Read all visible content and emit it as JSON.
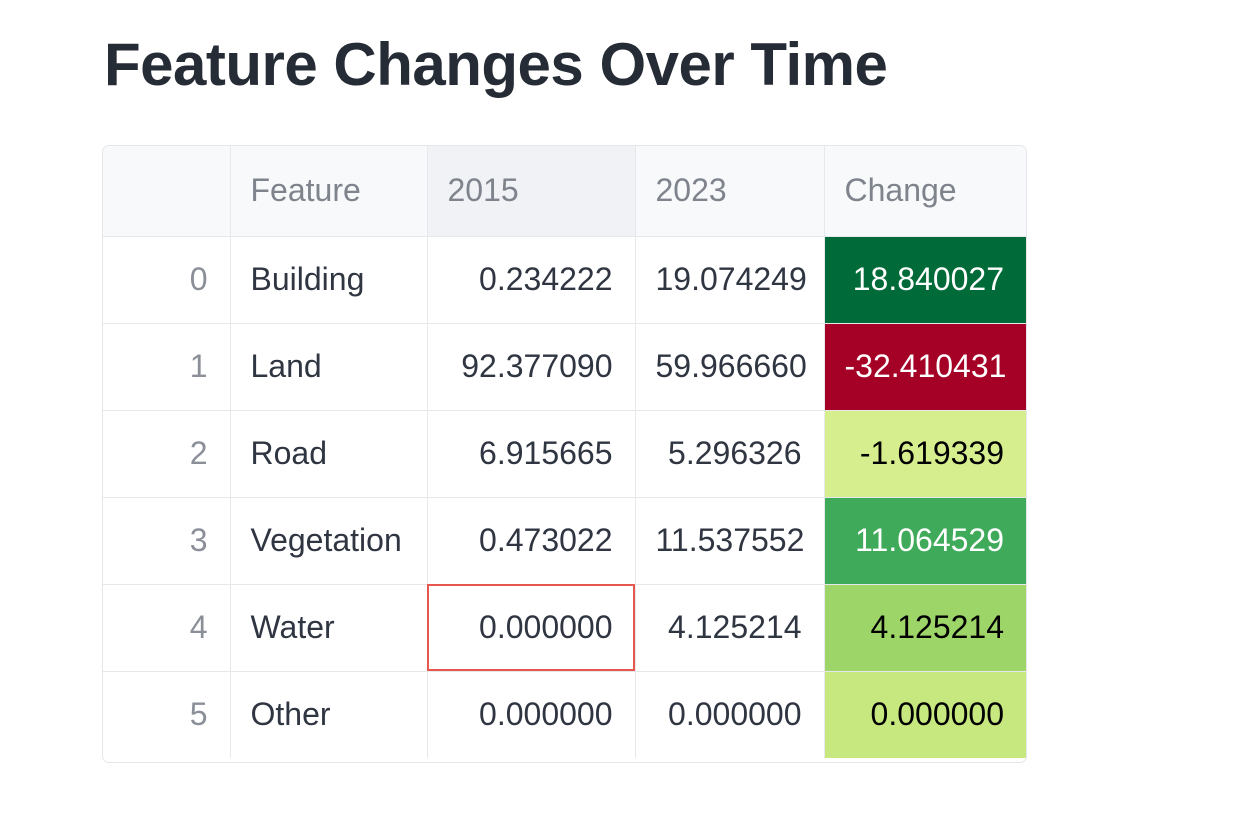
{
  "title": "Feature Changes Over Time",
  "table": {
    "columns": [
      "",
      "Feature",
      "2015",
      "2023",
      "Change"
    ],
    "rows": [
      {
        "index": "0",
        "feature": "Building",
        "y2015": "0.234222",
        "y2023": "19.074249",
        "change": "18.840027",
        "change_bg": "#006b38",
        "change_fg": "#ffffff"
      },
      {
        "index": "1",
        "feature": "Land",
        "y2015": "92.377090",
        "y2023": "59.966660",
        "change": "-32.410431",
        "change_bg": "#a50026",
        "change_fg": "#ffffff"
      },
      {
        "index": "2",
        "feature": "Road",
        "y2015": "6.915665",
        "y2023": "5.296326",
        "change": "-1.619339",
        "change_bg": "#d7ee8e",
        "change_fg": "#000000"
      },
      {
        "index": "3",
        "feature": "Vegetation",
        "y2015": "0.473022",
        "y2023": "11.537552",
        "change": "11.064529",
        "change_bg": "#3faa59",
        "change_fg": "#ffffff"
      },
      {
        "index": "4",
        "feature": "Water",
        "y2015": "0.000000",
        "y2023": "4.125214",
        "change": "4.125214",
        "change_bg": "#9ed569",
        "change_fg": "#000000"
      },
      {
        "index": "5",
        "feature": "Other",
        "y2015": "0.000000",
        "y2023": "0.000000",
        "change": "0.000000",
        "change_bg": "#c7e77f",
        "change_fg": "#000000"
      }
    ],
    "selected_cell": {
      "row": 4,
      "column": "2015"
    }
  },
  "colors": {
    "selection_outline": "#e8574d",
    "header_bg": "#f8f9fb",
    "sorted_header_bg": "#f0f2f6",
    "grid_line": "#e6e8eb"
  }
}
